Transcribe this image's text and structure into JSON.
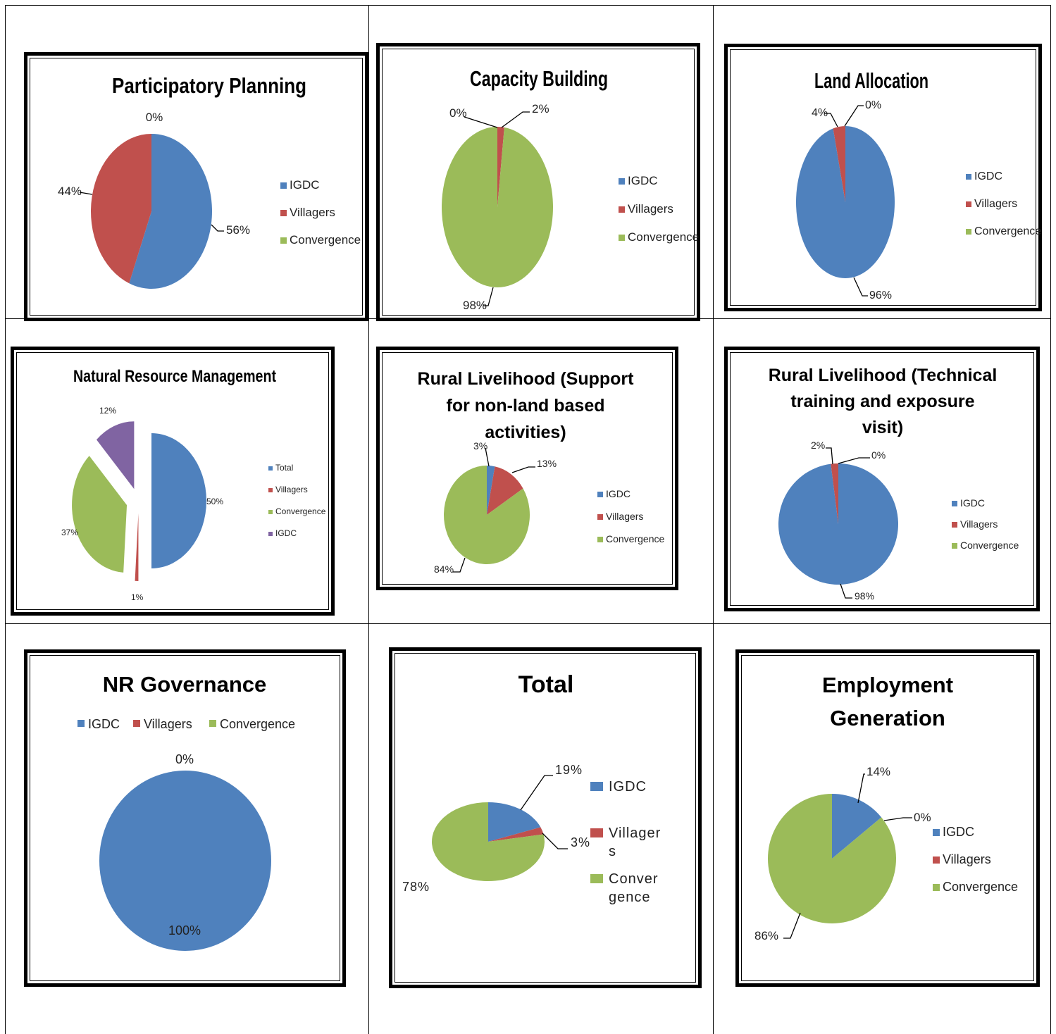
{
  "colors": {
    "IGDC": "#4f81bd",
    "Villagers": "#c0504d",
    "Convergence": "#9bbb59",
    "Total": "#4f81bd",
    "IGDC_purple": "#8064a2"
  },
  "chart_data": [
    {
      "id": "pp",
      "type": "pie",
      "title": "Participatory Planning",
      "series": [
        {
          "name": "IGDC",
          "value": 56,
          "label": "56%"
        },
        {
          "name": "Villagers",
          "value": 44,
          "label": "44%"
        },
        {
          "name": "Convergence",
          "value": 0,
          "label": "0%"
        }
      ],
      "legend": [
        "IGDC",
        "Villagers",
        "Convergence"
      ],
      "legend_position": "right"
    },
    {
      "id": "cb",
      "type": "pie",
      "title": "Capacity Building",
      "series": [
        {
          "name": "IGDC",
          "value": 0,
          "label": "0%"
        },
        {
          "name": "Villagers",
          "value": 2,
          "label": "2%"
        },
        {
          "name": "Convergence",
          "value": 98,
          "label": "98%"
        }
      ],
      "legend": [
        "IGDC",
        "Villagers",
        "Convergence"
      ],
      "legend_position": "right"
    },
    {
      "id": "la",
      "type": "pie",
      "title": "Land Allocation",
      "series": [
        {
          "name": "IGDC",
          "value": 96,
          "label": "96%"
        },
        {
          "name": "Villagers",
          "value": 4,
          "label": "4%"
        },
        {
          "name": "Convergence",
          "value": 0,
          "label": "0%"
        }
      ],
      "legend": [
        "IGDC",
        "Villagers",
        "Convergence"
      ],
      "legend_position": "right"
    },
    {
      "id": "nrm",
      "type": "pie",
      "title": "Natural Resource Management",
      "exploded": true,
      "series": [
        {
          "name": "Total",
          "value": 50,
          "label": "50%"
        },
        {
          "name": "Villagers",
          "value": 1,
          "label": "1%"
        },
        {
          "name": "Convergence",
          "value": 37,
          "label": "37%"
        },
        {
          "name": "IGDC",
          "value": 12,
          "label": "12%"
        }
      ],
      "legend": [
        "Total",
        "Villagers",
        "Convergence",
        "IGDC"
      ],
      "legend_position": "right"
    },
    {
      "id": "rl1",
      "type": "pie",
      "title_lines": [
        "Rural Livelihood (Support",
        "for non-land based",
        "activities)"
      ],
      "series": [
        {
          "name": "IGDC",
          "value": 3,
          "label": "3%"
        },
        {
          "name": "Villagers",
          "value": 13,
          "label": "13%"
        },
        {
          "name": "Convergence",
          "value": 84,
          "label": "84%"
        }
      ],
      "legend": [
        "IGDC",
        "Villagers",
        "Convergence"
      ],
      "legend_position": "right"
    },
    {
      "id": "rl2",
      "type": "pie",
      "title_lines": [
        "Rural Livelihood (Technical",
        "training and exposure",
        "visit)"
      ],
      "series": [
        {
          "name": "IGDC",
          "value": 98,
          "label": "98%"
        },
        {
          "name": "Villagers",
          "value": 2,
          "label": "2%"
        },
        {
          "name": "Convergence",
          "value": 0,
          "label": "0%"
        }
      ],
      "legend": [
        "IGDC",
        "Villagers",
        "Convergence"
      ],
      "legend_position": "right"
    },
    {
      "id": "nrg",
      "type": "pie",
      "title": "NR Governance",
      "series": [
        {
          "name": "IGDC",
          "value": 100,
          "label": "100%"
        },
        {
          "name": "Villagers",
          "value": 0,
          "label": "0%"
        },
        {
          "name": "Convergence",
          "value": 0,
          "label": ""
        }
      ],
      "legend": [
        "IGDC",
        "Villagers",
        "Convergence"
      ],
      "legend_position": "top"
    },
    {
      "id": "tot",
      "type": "pie",
      "title": "Total",
      "series": [
        {
          "name": "IGDC",
          "value": 19,
          "label": "19%"
        },
        {
          "name": "Villagers",
          "value": 3,
          "label": "3%"
        },
        {
          "name": "Convergence",
          "value": 78,
          "label": "78%"
        }
      ],
      "legend_lines": [
        [
          "IGDC"
        ],
        [
          "Villager",
          "s"
        ],
        [
          "Conver",
          "gence"
        ]
      ],
      "legend_position": "right"
    },
    {
      "id": "eg",
      "type": "pie",
      "title_lines": [
        "Employment",
        "Generation"
      ],
      "series": [
        {
          "name": "IGDC",
          "value": 14,
          "label": "14%"
        },
        {
          "name": "Villagers",
          "value": 0,
          "label": "0%"
        },
        {
          "name": "Convergence",
          "value": 86,
          "label": "86%"
        }
      ],
      "legend": [
        "IGDC",
        "Villagers",
        "Convergence"
      ],
      "legend_position": "right"
    }
  ]
}
